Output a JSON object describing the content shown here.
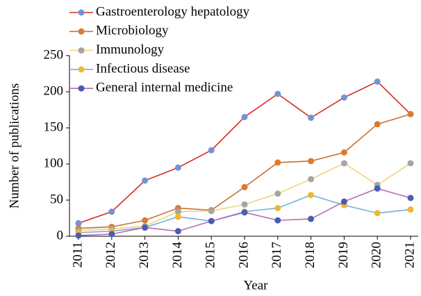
{
  "chart_data": {
    "type": "line",
    "xlabel": "Year",
    "ylabel": "Number of publications",
    "categories": [
      "2011",
      "2012",
      "2013",
      "2014",
      "2015",
      "2016",
      "2017",
      "2018",
      "2019",
      "2020",
      "2021"
    ],
    "series": [
      {
        "name": "Gastroenterology hepatology",
        "color": "#d62a2a",
        "marker_color": "#7393d4",
        "values": [
          18,
          34,
          77,
          95,
          119,
          165,
          197,
          164,
          192,
          214,
          169
        ]
      },
      {
        "name": "Microbiology",
        "color": "#c8702e",
        "marker_color": "#d97b34",
        "values": [
          11,
          13,
          22,
          39,
          36,
          68,
          102,
          104,
          116,
          155,
          169
        ]
      },
      {
        "name": "Immunology",
        "color": "#f2d27a",
        "marker_color": "#a5a5a5",
        "values": [
          8,
          10,
          14,
          34,
          35,
          44,
          59,
          79,
          101,
          71,
          101
        ]
      },
      {
        "name": "Infectious disease",
        "color": "#6fb0e0",
        "marker_color": "#f2b72c",
        "values": [
          5,
          7,
          12,
          27,
          21,
          34,
          39,
          57,
          43,
          32,
          37
        ]
      },
      {
        "name": "General internal medicine",
        "color": "#b96ab0",
        "marker_color": "#4a5cb8",
        "values": [
          1,
          3,
          12,
          7,
          21,
          33,
          22,
          24,
          48,
          66,
          53
        ]
      }
    ],
    "ylim": [
      0,
      250
    ],
    "yticks": [
      0,
      50,
      100,
      150,
      200,
      250
    ],
    "legend": "upper left"
  }
}
